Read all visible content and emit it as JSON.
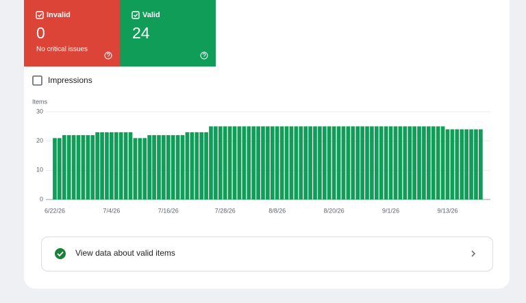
{
  "cards": [
    {
      "label": "Invalid",
      "value": 0,
      "note": "No critical issues"
    },
    {
      "label": "Valid",
      "value": 24
    }
  ],
  "toggle": {
    "label": "Impressions"
  },
  "chart_data": {
    "type": "bar",
    "y_label": "Items",
    "categories": [
      "6/22/26",
      null,
      null,
      null,
      null,
      null,
      null,
      null,
      null,
      null,
      null,
      null,
      "7/4/26",
      null,
      null,
      null,
      null,
      null,
      null,
      null,
      null,
      null,
      null,
      null,
      "7/16/26",
      null,
      null,
      null,
      null,
      null,
      null,
      null,
      null,
      null,
      null,
      null,
      "7/28/26",
      null,
      null,
      null,
      null,
      null,
      null,
      null,
      null,
      null,
      null,
      "8/8/26",
      null,
      null,
      null,
      null,
      null,
      null,
      null,
      null,
      null,
      null,
      null,
      "8/20/26",
      null,
      null,
      null,
      null,
      null,
      null,
      null,
      null,
      null,
      null,
      null,
      "9/1/26",
      null,
      null,
      null,
      null,
      null,
      null,
      null,
      null,
      null,
      null,
      null,
      "9/13/26",
      null,
      null,
      null,
      null,
      null,
      null,
      null
    ],
    "values": [
      21,
      21,
      22,
      22,
      22,
      22,
      22,
      22,
      22,
      23,
      23,
      23,
      23,
      23,
      23,
      23,
      23,
      21,
      21,
      21,
      22,
      22,
      22,
      22,
      22,
      22,
      22,
      22,
      23,
      23,
      23,
      23,
      23,
      25,
      25,
      25,
      25,
      25,
      25,
      25,
      25,
      25,
      25,
      25,
      25,
      25,
      25,
      25,
      25,
      25,
      25,
      25,
      25,
      25,
      25,
      25,
      25,
      25,
      25,
      25,
      25,
      25,
      25,
      25,
      25,
      25,
      25,
      25,
      25,
      25,
      25,
      25,
      25,
      25,
      25,
      25,
      25,
      25,
      25,
      25,
      25,
      25,
      25,
      24,
      24,
      24,
      24,
      24,
      24,
      24,
      24
    ],
    "color": "#0f9d58",
    "ylim": [
      0,
      30
    ],
    "yticks": [
      0,
      10,
      20,
      30
    ],
    "grid": true
  },
  "link": {
    "label": "View data about valid items"
  }
}
